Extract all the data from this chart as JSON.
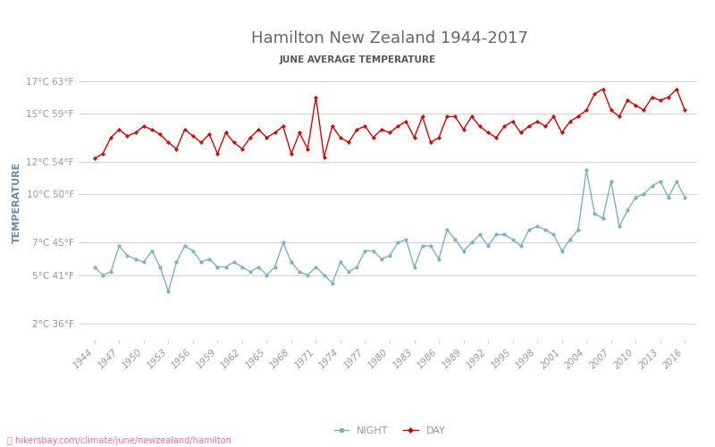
{
  "title": "Hamilton New Zealand 1944-2017",
  "subtitle": "JUNE AVERAGE TEMPERATURE",
  "ylabel": "TEMPERATURE",
  "background_color": "#ffffff",
  "plot_bg_color": "#ffffff",
  "grid_color": "#d0d0d0",
  "title_color": "#666666",
  "subtitle_color": "#555555",
  "ylabel_color": "#6688aa",
  "tick_color": "#999999",
  "day_color": "#dd0000",
  "night_color": "#7ab3c0",
  "years": [
    1944,
    1945,
    1946,
    1947,
    1948,
    1949,
    1950,
    1951,
    1952,
    1953,
    1954,
    1955,
    1956,
    1957,
    1958,
    1959,
    1960,
    1961,
    1962,
    1963,
    1964,
    1965,
    1966,
    1967,
    1968,
    1969,
    1970,
    1971,
    1972,
    1973,
    1974,
    1975,
    1976,
    1977,
    1978,
    1979,
    1980,
    1981,
    1982,
    1983,
    1984,
    1985,
    1986,
    1987,
    1988,
    1989,
    1990,
    1991,
    1992,
    1993,
    1994,
    1995,
    1996,
    1997,
    1998,
    1999,
    2000,
    2001,
    2002,
    2003,
    2004,
    2005,
    2006,
    2007,
    2008,
    2009,
    2010,
    2011,
    2012,
    2013,
    2014,
    2015,
    2016
  ],
  "day_temps": [
    12.2,
    12.5,
    13.5,
    14.0,
    13.6,
    13.8,
    14.2,
    14.0,
    13.7,
    13.2,
    12.8,
    14.0,
    13.6,
    13.2,
    13.7,
    12.5,
    13.8,
    13.2,
    12.8,
    13.5,
    14.0,
    13.5,
    13.8,
    14.2,
    12.5,
    13.8,
    12.8,
    16.0,
    12.3,
    14.2,
    13.5,
    13.2,
    14.0,
    14.2,
    13.5,
    14.0,
    13.8,
    14.2,
    14.5,
    13.5,
    14.8,
    13.2,
    13.5,
    14.8,
    14.8,
    14.0,
    14.8,
    14.2,
    13.8,
    13.5,
    14.2,
    14.5,
    13.8,
    14.2,
    14.5,
    14.2,
    14.8,
    13.8,
    14.5,
    14.8,
    15.2,
    16.2,
    16.5,
    15.2,
    14.8,
    15.8,
    15.5,
    15.2,
    16.0,
    15.8,
    16.0,
    16.5,
    15.2
  ],
  "night_temps": [
    5.5,
    5.0,
    5.2,
    6.8,
    6.2,
    6.0,
    5.8,
    6.5,
    5.5,
    4.0,
    5.8,
    6.8,
    6.5,
    5.8,
    6.0,
    5.5,
    5.5,
    5.8,
    5.5,
    5.2,
    5.5,
    5.0,
    5.5,
    7.0,
    5.8,
    5.2,
    5.0,
    5.5,
    5.0,
    4.5,
    5.8,
    5.2,
    5.5,
    6.5,
    6.5,
    6.0,
    6.2,
    7.0,
    7.2,
    5.5,
    6.8,
    6.8,
    6.0,
    7.8,
    7.2,
    6.5,
    7.0,
    7.5,
    6.8,
    7.5,
    7.5,
    7.2,
    6.8,
    7.8,
    8.0,
    7.8,
    7.5,
    6.5,
    7.2,
    7.8,
    11.5,
    8.8,
    8.5,
    10.8,
    8.0,
    9.0,
    9.8,
    10.0,
    10.5,
    10.8,
    9.8,
    10.8,
    9.8
  ],
  "yticks_c": [
    2,
    5,
    7,
    10,
    12,
    15,
    17
  ],
  "yticks_f": [
    36,
    41,
    45,
    50,
    54,
    59,
    63
  ],
  "xticks": [
    1944,
    1947,
    1950,
    1953,
    1956,
    1959,
    1962,
    1965,
    1968,
    1971,
    1974,
    1977,
    1980,
    1983,
    1986,
    1989,
    1992,
    1995,
    1998,
    2001,
    2004,
    2007,
    2010,
    2013,
    2016
  ],
  "watermark": "hikersbay.com/climate/june/newzealand/hamilton",
  "watermark_color": "#ff69b4",
  "watermark_icon": "⬤",
  "ymin": 1,
  "ymax": 18,
  "xmin": 1942.5,
  "xmax": 2017.5
}
